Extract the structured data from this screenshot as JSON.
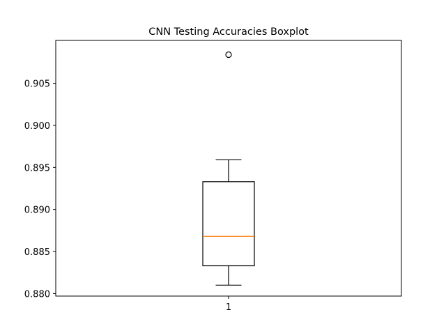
{
  "chart_data": {
    "type": "box",
    "title": "CNN Testing Accuracies Boxplot",
    "xlabel": "",
    "ylabel": "",
    "categories": [
      "1"
    ],
    "ylim": [
      0.8797,
      0.9101
    ],
    "yticks": [
      0.88,
      0.885,
      0.89,
      0.895,
      0.9,
      0.905
    ],
    "ytick_labels": [
      "0.880",
      "0.885",
      "0.890",
      "0.895",
      "0.900",
      "0.905"
    ],
    "boxes": [
      {
        "category": "1",
        "whisker_low": 0.881,
        "q1": 0.8833,
        "median": 0.8868,
        "q3": 0.8933,
        "whisker_high": 0.8959,
        "outliers": [
          0.9084
        ]
      }
    ],
    "colors": {
      "box": "#000000",
      "median": "#ff7f0e",
      "outlier": "#000000"
    },
    "grid": false,
    "legend": "none"
  }
}
